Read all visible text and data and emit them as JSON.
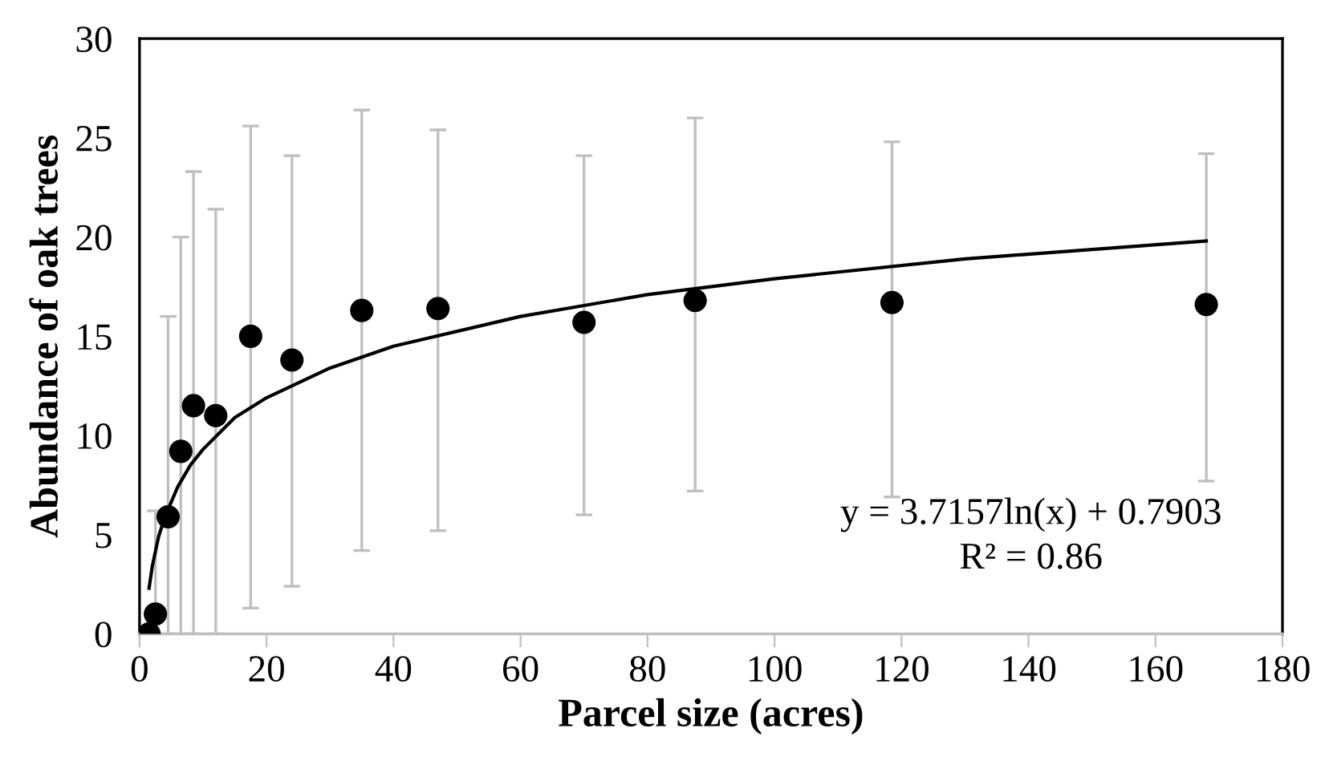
{
  "chart_data": {
    "type": "scatter",
    "xlabel": "Parcel size (acres)",
    "ylabel": "Abundance of oak trees",
    "xlim": [
      0,
      180
    ],
    "xticks": [
      0,
      20,
      40,
      60,
      80,
      100,
      120,
      140,
      160,
      180
    ],
    "ylim": [
      0,
      30
    ],
    "yticks": [
      0,
      5,
      10,
      15,
      20,
      25,
      30
    ],
    "grid": false,
    "legend": false,
    "series": [
      {
        "color": "#000000",
        "marker": "circle",
        "x": [
          1.5,
          2.5,
          4.5,
          6.5,
          8.5,
          12,
          17.5,
          24,
          35,
          47,
          70,
          87.5,
          118.5,
          168
        ],
        "values": [
          0,
          1.0,
          5.9,
          9.2,
          11.5,
          11.0,
          15.0,
          13.8,
          16.3,
          16.4,
          15.7,
          16.8,
          16.7,
          16.6
        ],
        "errors": [
          null,
          [
            0,
            6.2
          ],
          [
            0,
            16.0
          ],
          [
            0,
            20.0
          ],
          [
            0,
            23.3
          ],
          [
            0,
            21.4
          ],
          [
            1.3,
            25.6
          ],
          [
            2.4,
            24.1
          ],
          [
            4.2,
            26.4
          ],
          [
            5.2,
            25.4
          ],
          [
            6.0,
            24.1
          ],
          [
            7.2,
            26.0
          ],
          [
            6.9,
            24.8
          ],
          [
            7.7,
            24.2
          ]
        ]
      },
      {
        "type": "line",
        "color": "#000000",
        "marker": "none",
        "line_style": "solid",
        "x": [
          1.5,
          2,
          3,
          4,
          6,
          8,
          10,
          15,
          20,
          30,
          40,
          60,
          80,
          100,
          130,
          168
        ],
        "values": [
          2.3,
          3.4,
          4.9,
          5.9,
          7.4,
          8.5,
          9.3,
          10.9,
          11.9,
          13.4,
          14.5,
          16.0,
          17.1,
          17.9,
          18.9,
          19.8
        ]
      }
    ],
    "annotations": [
      "y = 3.7157ln(x) + 0.7903",
      "R² = 0.86"
    ]
  }
}
